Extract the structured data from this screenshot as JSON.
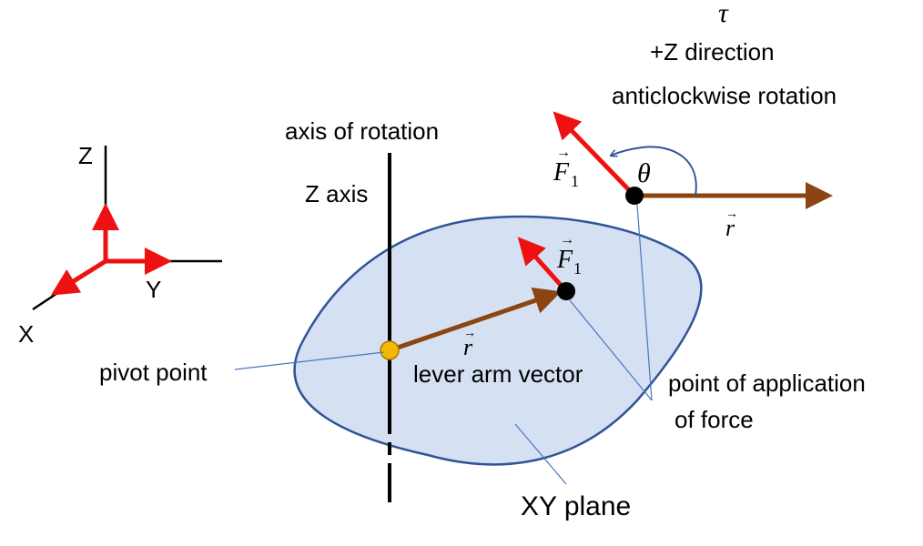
{
  "labels": {
    "tau": "τ",
    "z_direction": "+Z direction",
    "rotation": "anticlockwise rotation",
    "axis_of_rotation": "axis of rotation",
    "z_axis": "Z axis",
    "axis_z": "Z",
    "axis_y": "Y",
    "axis_x": "X",
    "pivot_point": "pivot point",
    "lever_arm": "lever arm vector",
    "point_application_1": "point of application",
    "point_application_2": "of force",
    "xy_plane": "XY plane",
    "theta": "θ",
    "force_letter": "F",
    "force_subscript": "1",
    "r_letter": "r"
  },
  "colors": {
    "force": "#ee1111",
    "lever": "#8b4513",
    "plane_fill": "#d6e0f3",
    "plane_stroke": "#2f5497",
    "pivot": "#f5b800",
    "leader": "#4a76c0"
  }
}
